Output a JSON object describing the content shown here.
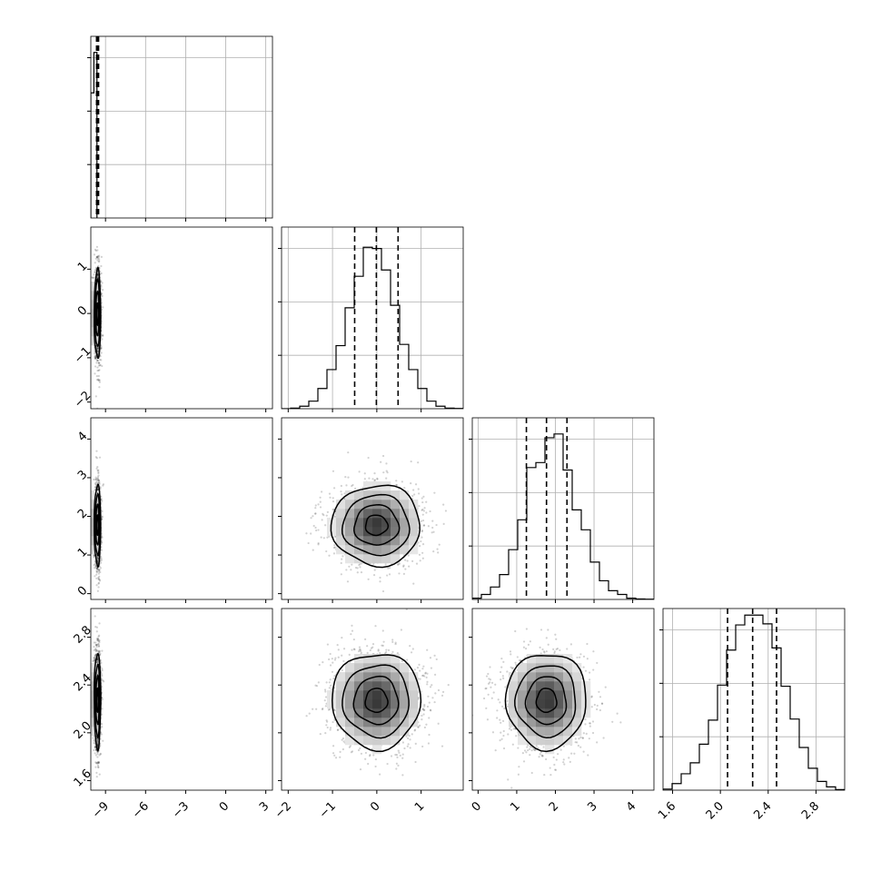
{
  "chart_data": {
    "type": "corner",
    "title": "",
    "grid": true,
    "colors": {
      "line": "#000000",
      "grid": "#b0b0b0",
      "hist_fill": "#000000",
      "scatter": "#000000"
    },
    "params": [
      {
        "range": [
          -10.1,
          3.5
        ],
        "ticks": [
          -9,
          -6,
          -3,
          0,
          3
        ],
        "tick_labels": [
          "−9",
          "−6",
          "−3",
          "0",
          "3"
        ],
        "quantiles": [
          -9.67,
          -9.6,
          -9.52
        ],
        "mean": -9.6,
        "std": 0.12
      },
      {
        "range": [
          -2.15,
          1.95
        ],
        "ticks": [
          -2,
          -1,
          0,
          1
        ],
        "tick_labels": [
          "−2",
          "−1",
          "0",
          "1"
        ],
        "quantiles": [
          -0.5,
          -0.01,
          0.48
        ],
        "mean": -0.01,
        "std": 0.5
      },
      {
        "range": [
          -0.15,
          4.55
        ],
        "ticks": [
          0,
          1,
          2,
          3,
          4
        ],
        "tick_labels": [
          "0",
          "1",
          "2",
          "3",
          "4"
        ],
        "quantiles": [
          1.25,
          1.77,
          2.3
        ],
        "mean": 1.77,
        "std": 0.52
      },
      {
        "range": [
          1.52,
          3.04
        ],
        "ticks": [
          1.6,
          2.0,
          2.4,
          2.8
        ],
        "tick_labels": [
          "1.6",
          "2.0",
          "2.4",
          "2.8"
        ],
        "quantiles": [
          2.06,
          2.27,
          2.47
        ],
        "mean": 2.27,
        "std": 0.2
      }
    ],
    "histograms": [
      {
        "param": 0,
        "bins": [
          -10.1,
          -9.87,
          -9.64
        ],
        "counts": [
          3100,
          4100
        ],
        "ylim": [
          0,
          4500
        ]
      },
      {
        "param": 1,
        "bins": [
          -2.15,
          -1.945,
          -1.74,
          -1.535,
          -1.33,
          -1.125,
          -0.92,
          -0.715,
          -0.51,
          -0.305,
          -0.1,
          0.105,
          0.31,
          0.515,
          0.72,
          0.925,
          1.13,
          1.335,
          1.54,
          1.745,
          1.95
        ],
        "counts": [
          0,
          5,
          20,
          60,
          160,
          310,
          500,
          800,
          1050,
          1280,
          1270,
          1100,
          820,
          510,
          310,
          160,
          60,
          20,
          5,
          2
        ],
        "ylim": [
          0,
          1440
        ]
      },
      {
        "param": 2,
        "bins": [
          -0.15,
          0.085,
          0.32,
          0.555,
          0.79,
          1.025,
          1.26,
          1.495,
          1.73,
          1.965,
          2.2,
          2.435,
          2.67,
          2.905,
          3.14,
          3.375,
          3.61,
          3.845,
          4.08,
          4.315,
          4.55
        ],
        "counts": [
          10,
          40,
          100,
          200,
          400,
          640,
          1060,
          1100,
          1300,
          1330,
          1040,
          720,
          560,
          300,
          150,
          70,
          40,
          10,
          4,
          2
        ],
        "ylim": [
          0,
          1460
        ]
      },
      {
        "param": 3,
        "bins": [
          1.52,
          1.596,
          1.672,
          1.748,
          1.824,
          1.9,
          1.976,
          2.052,
          2.128,
          2.204,
          2.28,
          2.356,
          2.432,
          2.508,
          2.584,
          2.66,
          2.736,
          2.812,
          2.888,
          2.964,
          3.04
        ],
        "counts": [
          10,
          60,
          150,
          250,
          420,
          640,
          960,
          1280,
          1510,
          1600,
          1600,
          1520,
          1300,
          950,
          650,
          390,
          200,
          80,
          30,
          5
        ],
        "ylim": [
          0,
          1660
        ]
      }
    ],
    "density_levels": [
      0.118,
      0.393,
      0.675,
      0.865
    ]
  }
}
